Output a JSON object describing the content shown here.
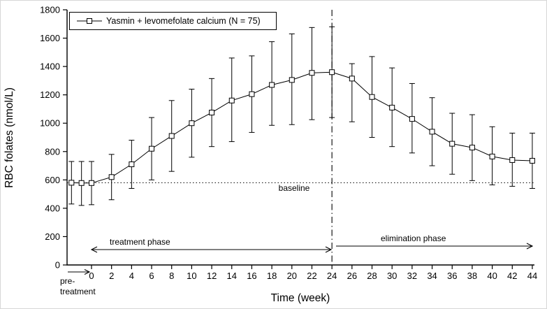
{
  "chart_data": {
    "type": "line",
    "title": "",
    "xlabel": "Time (week)",
    "ylabel": "RBC folates (nmol/L)",
    "xlim": [
      -2.5,
      44.5
    ],
    "ylim": [
      0,
      1800
    ],
    "grid": false,
    "x_ticks": [
      0,
      2,
      4,
      6,
      8,
      10,
      12,
      14,
      16,
      18,
      20,
      22,
      24,
      26,
      28,
      30,
      32,
      34,
      36,
      38,
      40,
      42,
      44
    ],
    "y_ticks": [
      0,
      200,
      400,
      600,
      800,
      1000,
      1200,
      1400,
      1600,
      1800
    ],
    "legend": {
      "position": "top-left",
      "label": "Yasmin + levomefolate calcium (N = 75)",
      "marker": "open-square"
    },
    "series": [
      {
        "name": "Yasmin + levomefolate calcium (N = 75)",
        "marker": "open-square",
        "x": [
          -2,
          -1,
          0,
          2,
          4,
          6,
          8,
          10,
          12,
          14,
          16,
          18,
          20,
          22,
          24,
          26,
          28,
          30,
          32,
          34,
          36,
          38,
          40,
          42,
          44
        ],
        "y": [
          580,
          578,
          578,
          620,
          710,
          820,
          910,
          1000,
          1075,
          1160,
          1205,
          1270,
          1305,
          1355,
          1360,
          1315,
          1185,
          1110,
          1030,
          940,
          855,
          828,
          765,
          740,
          735
        ],
        "y_lower": [
          430,
          420,
          425,
          460,
          540,
          600,
          660,
          760,
          835,
          870,
          935,
          985,
          990,
          1025,
          1040,
          1010,
          900,
          835,
          790,
          700,
          640,
          595,
          565,
          555,
          540
        ],
        "y_upper": [
          730,
          730,
          730,
          780,
          880,
          1040,
          1160,
          1240,
          1315,
          1460,
          1475,
          1575,
          1630,
          1675,
          1680,
          1420,
          1470,
          1390,
          1280,
          1180,
          1070,
          1060,
          975,
          930,
          930
        ]
      }
    ],
    "baseline": {
      "label": "baseline",
      "value": 580
    },
    "phase_divider_week": 24,
    "annotations": {
      "treatment": {
        "label": "treatment phase",
        "x_start": 0,
        "x_end": 24,
        "arrows": "both"
      },
      "elimination": {
        "label": "elimination phase",
        "x_start": 24.5,
        "x_end": 44,
        "arrows": "right"
      },
      "pre": {
        "line1": "pre-",
        "line2": "treatment",
        "arrows": "right"
      }
    }
  }
}
